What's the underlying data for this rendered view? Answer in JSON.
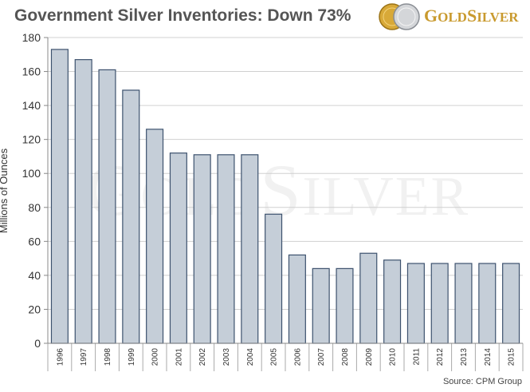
{
  "title": "Government Silver Inventories: Down 73%",
  "logo": {
    "text": "GoldSilver",
    "name": "goldsilver-logo"
  },
  "watermark": "GoldSilver",
  "source": "Source: CPM Group",
  "colors": {
    "bar_fill": "#c5ced8",
    "bar_stroke": "#3d526e",
    "grid": "#d0d0d0",
    "logo_gold": "#c99a2e"
  },
  "chart_data": {
    "type": "bar",
    "title": "Government Silver Inventories: Down 73%",
    "ylabel": "Millions of Ounces",
    "xlabel": "",
    "ylim": [
      0,
      180
    ],
    "yticks": [
      0,
      20,
      40,
      60,
      80,
      100,
      120,
      140,
      160,
      180
    ],
    "grid": true,
    "categories": [
      "1996",
      "1997",
      "1998",
      "1999",
      "2000",
      "2001",
      "2002",
      "2003",
      "2004",
      "2005",
      "2006",
      "2007",
      "2008",
      "2009",
      "2010",
      "2011",
      "2012",
      "2013",
      "2014",
      "2015"
    ],
    "values": [
      173,
      167,
      161,
      149,
      126,
      112,
      111,
      111,
      111,
      76,
      52,
      44,
      44,
      53,
      49,
      47,
      47,
      47,
      47,
      47
    ]
  }
}
